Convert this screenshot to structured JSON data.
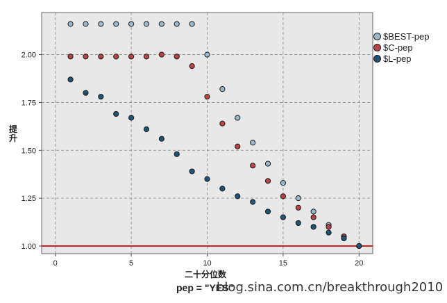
{
  "chart_data": {
    "type": "scatter",
    "xlabel": "二十分位数",
    "ylabel": "提升",
    "xlim": [
      -0.9,
      20.9
    ],
    "ylim": [
      0.96,
      2.22
    ],
    "xticks": [
      0,
      5,
      10,
      15,
      20
    ],
    "yticks": [
      1.0,
      1.25,
      1.5,
      1.75,
      2.0
    ],
    "ytick_labels": [
      "1.00",
      "1.25",
      "1.50",
      "1.75",
      "2.00"
    ],
    "grid": true,
    "legend_position": "right",
    "reference_line": {
      "y": 1.0,
      "color": "#cc2020"
    },
    "series": [
      {
        "name": "$BEST-pep",
        "color": "#9bb8cc",
        "x": [
          1,
          2,
          3,
          4,
          5,
          6,
          7,
          8,
          9,
          10,
          11,
          12,
          13,
          14,
          15,
          16,
          17,
          18,
          19,
          20
        ],
        "y": [
          2.16,
          2.16,
          2.16,
          2.16,
          2.16,
          2.16,
          2.16,
          2.16,
          2.16,
          2.0,
          1.82,
          1.67,
          1.54,
          1.43,
          1.33,
          1.25,
          1.18,
          1.11,
          1.05,
          1.0
        ]
      },
      {
        "name": "$C-pep",
        "color": "#b94448",
        "x": [
          1,
          2,
          3,
          4,
          5,
          6,
          7,
          8,
          9,
          10,
          11,
          12,
          13,
          14,
          15,
          16,
          17,
          18,
          19,
          20
        ],
        "y": [
          1.99,
          1.99,
          1.99,
          1.99,
          1.99,
          1.99,
          2.0,
          1.99,
          1.94,
          1.78,
          1.64,
          1.52,
          1.42,
          1.34,
          1.26,
          1.2,
          1.15,
          1.1,
          1.05,
          1.0
        ]
      },
      {
        "name": "$L-pep",
        "color": "#1d5477",
        "x": [
          1,
          2,
          3,
          4,
          5,
          6,
          7,
          8,
          9,
          10,
          11,
          12,
          13,
          14,
          15,
          16,
          17,
          18,
          19,
          20
        ],
        "y": [
          1.87,
          1.8,
          1.78,
          1.69,
          1.67,
          1.61,
          1.56,
          1.48,
          1.39,
          1.35,
          1.3,
          1.26,
          1.23,
          1.18,
          1.15,
          1.12,
          1.1,
          1.07,
          1.04,
          1.0
        ]
      }
    ]
  },
  "legend": {
    "items": [
      {
        "label": "$BEST-pep",
        "color": "#9bb8cc"
      },
      {
        "label": "$C-pep",
        "color": "#b94448"
      },
      {
        "label": "$L-pep",
        "color": "#1d5477"
      }
    ]
  },
  "caption": "pep = \"YES\"",
  "watermark": "blog.sina.com.cn/breakthrough2010"
}
